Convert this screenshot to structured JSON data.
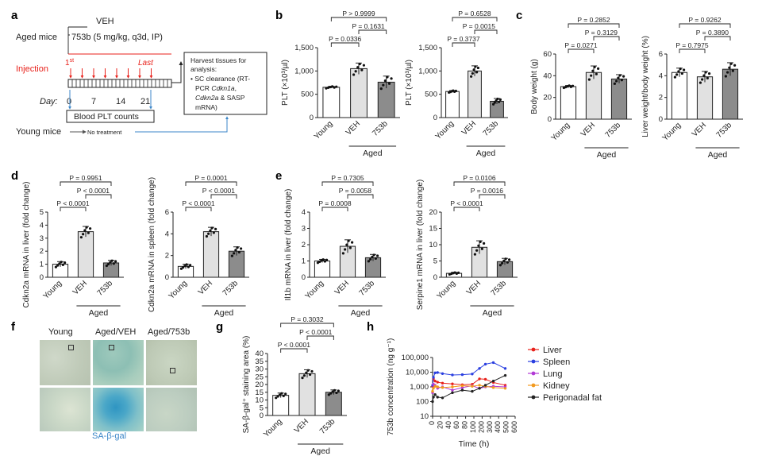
{
  "colors": {
    "white_bar": "#ffffff",
    "light_bar": "#e1e1e1",
    "dark_bar": "#8c8c8c",
    "red": "#e8211b",
    "blue": "#3b86c8"
  },
  "panel_a": {
    "label": "a",
    "aged_mice": "Aged mice",
    "veh": "VEH",
    "dose": "753b (5 mg/kg, q3d, IP)",
    "injection": "Injection",
    "first": "1",
    "first_sup": "st",
    "last": "Last",
    "day": "Day:",
    "days": [
      "0",
      "7",
      "14",
      "21"
    ],
    "blood": "Blood PLT counts",
    "young_mice": "Young mice",
    "no_treatment": "No treatment",
    "harvest": [
      "Harvest tissues for",
      "analysis:",
      "SC clearance (RT-",
      "PCR ",
      "Cdkn1a",
      ",",
      "Cdkn2a",
      " & SASP",
      "mRNA)"
    ]
  },
  "groups": {
    "young": "Young",
    "veh": "VEH",
    "b753": "753b",
    "aged": "Aged"
  },
  "panel_labels": {
    "b": "b",
    "c": "c",
    "d": "d",
    "e": "e",
    "f": "f",
    "g": "g",
    "h": "h"
  },
  "chart_data": [
    {
      "id": "b1",
      "type": "bar",
      "title": "",
      "ylabel": "PLT (×10³/µl)",
      "categories": [
        "Young",
        "VEH",
        "753b"
      ],
      "values": [
        650,
        1050,
        760
      ],
      "errors": [
        20,
        120,
        130
      ],
      "ylim": [
        0,
        1500
      ],
      "ticks": [
        "0",
        "500",
        "1,000",
        "1,500"
      ],
      "pvalues": [
        "P > 0.9999",
        "P = 0.1631",
        "P = 0.0336"
      ]
    },
    {
      "id": "b2",
      "type": "bar",
      "ylabel": "PLT (×10³/µl)",
      "categories": [
        "Young",
        "VEH",
        "753b"
      ],
      "values": [
        560,
        1000,
        350
      ],
      "errors": [
        20,
        110,
        60
      ],
      "ylim": [
        0,
        1500
      ],
      "ticks": [
        "0",
        "500",
        "1,000",
        "1,500"
      ],
      "pvalues": [
        "P = 0.6528",
        "P = 0.0015",
        "P = 0.3737"
      ]
    },
    {
      "id": "c1",
      "type": "bar",
      "ylabel": "Body weight (g)",
      "categories": [
        "Young",
        "VEH",
        "753b"
      ],
      "values": [
        30,
        43,
        37
      ],
      "errors": [
        1,
        6,
        4
      ],
      "ylim": [
        0,
        60
      ],
      "ticks": [
        "0",
        "20",
        "40",
        "60"
      ],
      "pvalues": [
        "P = 0.2852",
        "P = 0.3129",
        "P = 0.0271"
      ]
    },
    {
      "id": "c2",
      "type": "bar",
      "ylabel": "Liver weight/body weight (%)",
      "categories": [
        "Young",
        "VEH",
        "753b"
      ],
      "values": [
        4.3,
        3.9,
        4.6
      ],
      "errors": [
        0.4,
        0.5,
        0.6
      ],
      "ylim": [
        0,
        6
      ],
      "ticks": [
        "0",
        "2",
        "4",
        "6"
      ],
      "pvalues": [
        "P = 0.9262",
        "P = 0.3890",
        "P = 0.7975"
      ]
    },
    {
      "id": "d1",
      "type": "bar",
      "ylabel": "Cdkn2a mRNA in liver (fold change)",
      "categories": [
        "Young",
        "VEH",
        "753b"
      ],
      "values": [
        1.0,
        3.5,
        1.1
      ],
      "errors": [
        0.2,
        0.4,
        0.2
      ],
      "ylim": [
        0,
        5
      ],
      "ticks": [
        "0",
        "1",
        "2",
        "3",
        "4",
        "5"
      ],
      "pvalues": [
        "P = 0.9951",
        "P < 0.0001",
        "P < 0.0001"
      ]
    },
    {
      "id": "d2",
      "type": "bar",
      "ylabel": "Cdkn2a mRNA in spleen (fold change)",
      "categories": [
        "Young",
        "VEH",
        "753b"
      ],
      "values": [
        1.0,
        4.2,
        2.4
      ],
      "errors": [
        0.2,
        0.4,
        0.4
      ],
      "ylim": [
        0,
        6
      ],
      "ticks": [
        "0",
        "2",
        "4",
        "6"
      ],
      "pvalues": [
        "P = 0.0001",
        "P < 0.0001",
        "P < 0.0001"
      ]
    },
    {
      "id": "e1",
      "type": "bar",
      "ylabel": "Il1b mRNA in liver (fold change)",
      "categories": [
        "Young",
        "VEH",
        "753b"
      ],
      "values": [
        1.0,
        1.9,
        1.2
      ],
      "errors": [
        0.1,
        0.4,
        0.2
      ],
      "ylim": [
        0,
        4
      ],
      "ticks": [
        "0",
        "1",
        "2",
        "3",
        "4"
      ],
      "pvalues": [
        "P = 0.7305",
        "P = 0.0058",
        "P = 0.0008"
      ]
    },
    {
      "id": "e2",
      "type": "bar",
      "ylabel": "Serpine1 mRNA in liver (fold change)",
      "categories": [
        "Young",
        "VEH",
        "753b"
      ],
      "values": [
        1.2,
        9.2,
        4.8
      ],
      "errors": [
        0.3,
        2.0,
        1.0
      ],
      "ylim": [
        0,
        20
      ],
      "ticks": [
        "0",
        "5",
        "10",
        "15",
        "20"
      ],
      "pvalues": [
        "P = 0.0106",
        "P = 0.0016",
        "P < 0.0001"
      ]
    },
    {
      "id": "g",
      "type": "bar",
      "ylabel": "SA-β-gal⁺ staining area (%)",
      "categories": [
        "Young",
        "VEH",
        "753b"
      ],
      "values": [
        13,
        27,
        15
      ],
      "errors": [
        1.5,
        2.5,
        1.5
      ],
      "ylim": [
        0,
        40
      ],
      "ticks": [
        "0",
        "5",
        "10",
        "15",
        "20",
        "25",
        "30",
        "35",
        "40"
      ],
      "pvalues": [
        "P = 0.3032",
        "P < 0.0001",
        "P < 0.0001"
      ]
    },
    {
      "id": "h",
      "type": "line",
      "xlabel": "Time (h)",
      "ylabel": "753b concentration (ng g⁻¹)",
      "xlim": [
        0,
        600
      ],
      "xticks": [
        "0",
        "20",
        "40",
        "60",
        "80",
        "100",
        "200",
        "300",
        "400",
        "500",
        "600"
      ],
      "yticks": [
        "10",
        "100",
        "1,000",
        "10,000",
        "100,000"
      ],
      "x": [
        0,
        2,
        6,
        12,
        24,
        48,
        72,
        96,
        168,
        240,
        336,
        480
      ],
      "series": [
        {
          "name": "Liver",
          "color": "#e8211b",
          "marker": "diamond",
          "values": [
            1100,
            3500,
            2500,
            2100,
            1800,
            1600,
            1400,
            1500,
            3500,
            3300,
            2000,
            1300
          ]
        },
        {
          "name": "Spleen",
          "color": "#2a3fe0",
          "marker": "square",
          "values": [
            1300,
            4500,
            9000,
            9500,
            8000,
            6500,
            6800,
            7500,
            18000,
            35000,
            45000,
            18000
          ]
        },
        {
          "name": "Lung",
          "color": "#b23ad6",
          "marker": "circle",
          "values": [
            400,
            1500,
            1300,
            800,
            1000,
            600,
            900,
            1200,
            800,
            1000,
            1100,
            1000
          ]
        },
        {
          "name": "Kidney",
          "color": "#f29a1f",
          "marker": "triangle",
          "values": [
            500,
            800,
            1100,
            1000,
            900,
            1000,
            1200,
            1100,
            1300,
            1100,
            900,
            800
          ]
        },
        {
          "name": "Perigonadal fat",
          "color": "#222222",
          "marker": "star",
          "values": [
            100,
            200,
            300,
            200,
            180,
            400,
            600,
            500,
            800,
            1300,
            2500,
            6000
          ]
        }
      ]
    }
  ],
  "panel_f": {
    "cols": [
      "Young",
      "Aged/VEH",
      "Aged/753b"
    ],
    "stain": "SA-β-gal"
  }
}
